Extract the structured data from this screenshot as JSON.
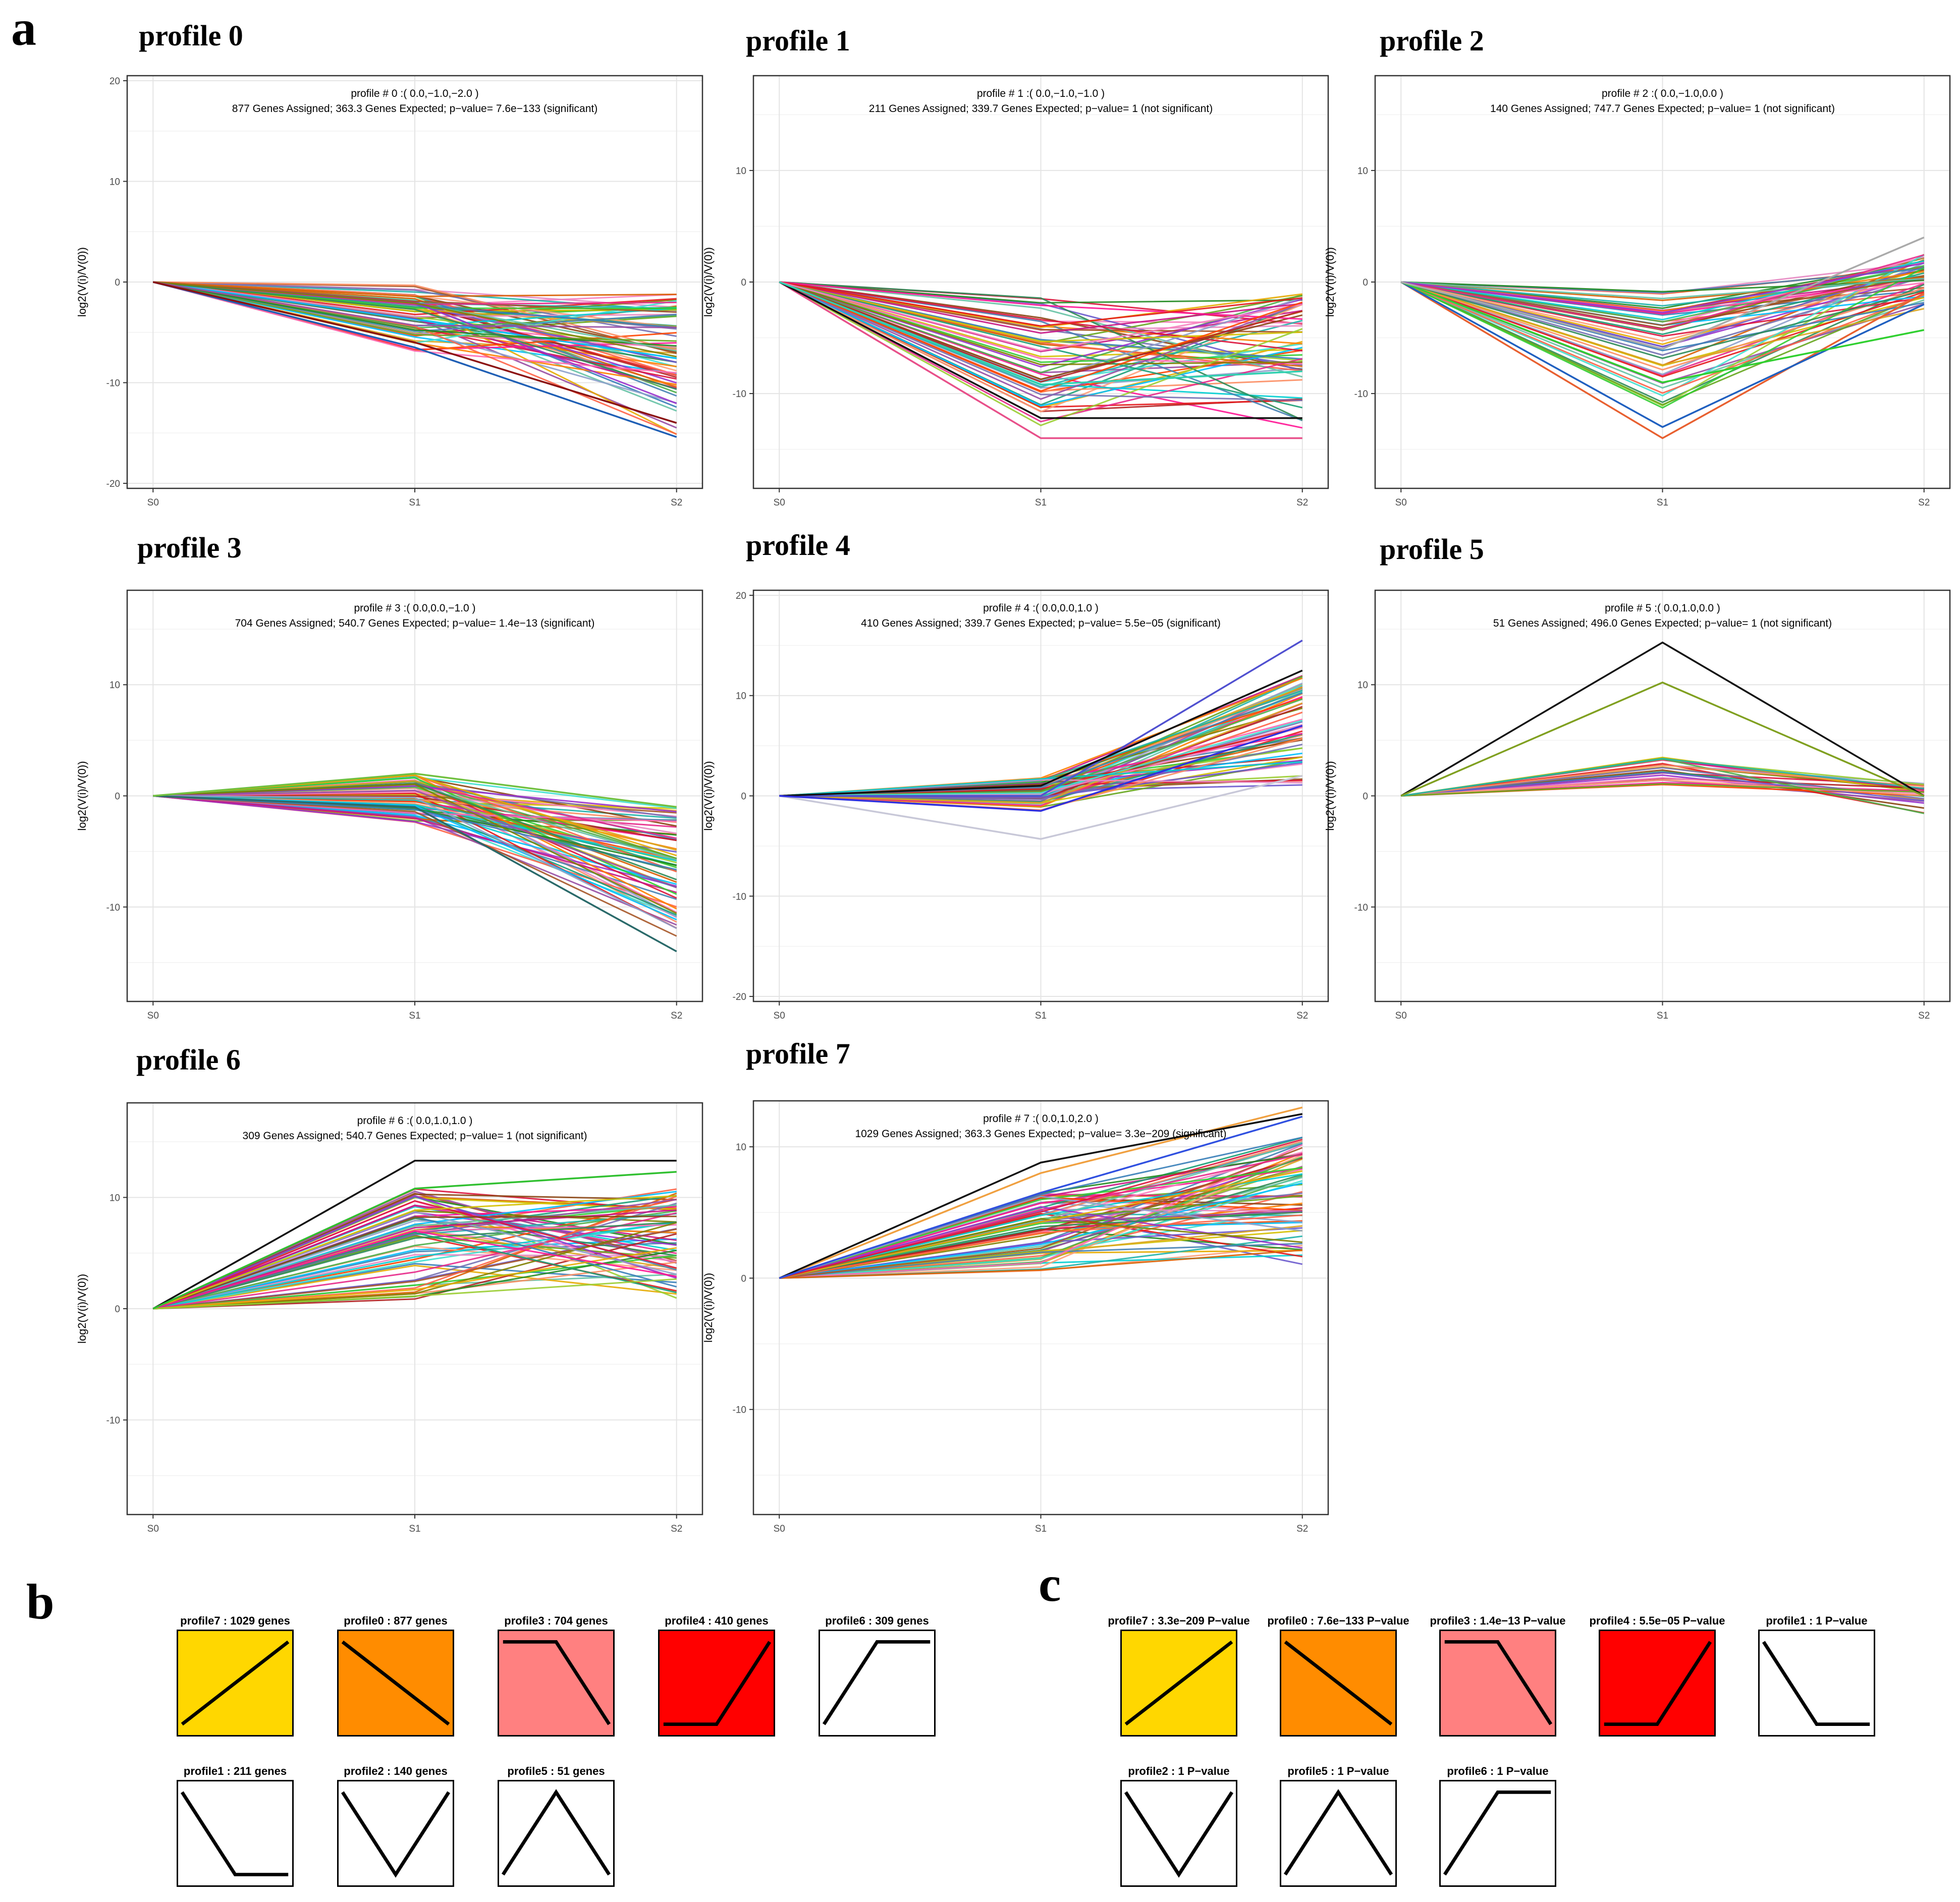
{
  "panels": {
    "a": "a",
    "b": "b",
    "c": "c"
  },
  "chart_data": [
    {
      "type": "line",
      "title": "profile 0",
      "subtitle_line1": "profile # 0 :( 0.0,−1.0,−2.0 )",
      "subtitle_line2": "877 Genes Assigned; 363.3 Genes Expected; p−value= 7.6e−133 (significant)",
      "ylabel": "log2(V(i)/V(0))",
      "categories": [
        "S0",
        "S1",
        "S2"
      ],
      "ylim": [
        -20.5,
        20.5
      ],
      "yticks": [
        20,
        10,
        0,
        -10,
        -20
      ],
      "ytick_labels": [
        "20",
        "10",
        "0",
        "-10",
        "-20"
      ],
      "profile": [
        0,
        -1,
        -2
      ],
      "s1_range": [
        -7,
        -0.3
      ],
      "s2_range": [
        -15.5,
        -1.2
      ],
      "highlight_series": [
        {
          "name": "max-down",
          "values": [
            0,
            -6.5,
            -15.4
          ],
          "color": "#1f5fb5"
        },
        {
          "name": "dark-down",
          "values": [
            0,
            -6,
            -14
          ],
          "color": "#8b1010"
        }
      ],
      "num_series": 70
    },
    {
      "type": "line",
      "title": "profile 1",
      "subtitle_line1": "profile # 1 :( 0.0,−1.0,−1.0 )",
      "subtitle_line2": "211 Genes Assigned; 339.7 Genes Expected; p−value= 1 (not significant)",
      "ylabel": "log2(V(i)/V(0))",
      "categories": [
        "S0",
        "S1",
        "S2"
      ],
      "ylim": [
        -18.5,
        18.5
      ],
      "yticks": [
        10,
        0,
        -10
      ],
      "ytick_labels": [
        "10",
        "0",
        "-10"
      ],
      "profile": [
        0,
        -1,
        -1
      ],
      "s1_range": [
        -13.5,
        -1.2
      ],
      "s2_range": [
        -13.5,
        -1
      ],
      "highlight_series": [
        {
          "name": "deepest",
          "values": [
            0,
            -14,
            -14
          ],
          "color": "#e8508a"
        },
        {
          "name": "black",
          "values": [
            0,
            -12.2,
            -12.2
          ],
          "color": "#111111"
        },
        {
          "name": "cyan",
          "values": [
            0,
            -9.2,
            -8
          ],
          "color": "#2fd0b0"
        }
      ],
      "num_series": 55
    },
    {
      "type": "line",
      "title": "profile 2",
      "subtitle_line1": "profile # 2 :( 0.0,−1.0,0.0 )",
      "subtitle_line2": "140 Genes Assigned; 747.7 Genes Expected; p−value= 1 (not significant)",
      "ylabel": "log2(V(i)/V(0))",
      "categories": [
        "S0",
        "S1",
        "S2"
      ],
      "ylim": [
        -18.5,
        18.5
      ],
      "yticks": [
        10,
        0,
        -10
      ],
      "ytick_labels": [
        "10",
        "0",
        "-10"
      ],
      "profile": [
        0,
        -1,
        0
      ],
      "s1_range": [
        -12,
        -0.8
      ],
      "s2_range": [
        -2.5,
        2.5
      ],
      "highlight_series": [
        {
          "name": "deepest",
          "values": [
            0,
            -14,
            -1
          ],
          "color": "#e86030"
        },
        {
          "name": "blue",
          "values": [
            0,
            -13,
            -2
          ],
          "color": "#2060c0"
        },
        {
          "name": "green",
          "values": [
            0,
            -9,
            -4.3
          ],
          "color": "#30d030"
        },
        {
          "name": "gray-up",
          "values": [
            0,
            -6,
            4
          ],
          "color": "#aaaaaa"
        }
      ],
      "num_series": 50
    },
    {
      "type": "line",
      "title": "profile 3",
      "subtitle_line1": "profile # 3 :( 0.0,0.0,−1.0 )",
      "subtitle_line2": "704 Genes Assigned; 540.7 Genes Expected; p−value= 1.4e−13 (significant)",
      "ylabel": "log2(V(i)/V(0))",
      "categories": [
        "S0",
        "S1",
        "S2"
      ],
      "ylim": [
        -18.5,
        18.5
      ],
      "yticks": [
        10,
        0,
        -10
      ],
      "ytick_labels": [
        "10",
        "0",
        "-10"
      ],
      "profile": [
        0,
        0,
        -1
      ],
      "s1_range": [
        -2.5,
        2
      ],
      "s2_range": [
        -13,
        -0.8
      ],
      "highlight_series": [
        {
          "name": "deepest",
          "values": [
            0,
            -1,
            -14
          ],
          "color": "#2a6a6a"
        },
        {
          "name": "top-green",
          "values": [
            0,
            2,
            -1
          ],
          "color": "#70c040"
        }
      ],
      "num_series": 65
    },
    {
      "type": "line",
      "title": "profile 4",
      "subtitle_line1": "profile # 4 :( 0.0,0.0,1.0 )",
      "subtitle_line2": "410 Genes Assigned; 339.7 Genes Expected; p−value= 5.5e−05 (significant)",
      "ylabel": "log2(V(i)/V(0))",
      "categories": [
        "S0",
        "S1",
        "S2"
      ],
      "ylim": [
        -20.5,
        20.5
      ],
      "yticks": [
        20,
        10,
        0,
        -10,
        -20
      ],
      "ytick_labels": [
        "20",
        "10",
        "0",
        "-10",
        "-20"
      ],
      "profile": [
        0,
        0,
        1
      ],
      "s1_range": [
        -1.5,
        1.8
      ],
      "s2_range": [
        0.8,
        12
      ],
      "highlight_series": [
        {
          "name": "max-up",
          "values": [
            0,
            0,
            15.5
          ],
          "color": "#5050d0"
        },
        {
          "name": "black-up",
          "values": [
            0,
            1,
            12.5
          ],
          "color": "#111111"
        },
        {
          "name": "gray-dip",
          "values": [
            0,
            -4.3,
            2
          ],
          "color": "#c8c8d8"
        },
        {
          "name": "blue-dip",
          "values": [
            0,
            -1.5,
            7
          ],
          "color": "#3030e0"
        }
      ],
      "num_series": 60
    },
    {
      "type": "line",
      "title": "profile 5",
      "subtitle_line1": "profile # 5 :( 0.0,1.0,0.0 )",
      "subtitle_line2": "51 Genes Assigned; 496.0 Genes Expected; p−value= 1 (not significant)",
      "ylabel": "log2(V(i)/V(0))",
      "categories": [
        "S0",
        "S1",
        "S2"
      ],
      "ylim": [
        -18.5,
        18.5
      ],
      "yticks": [
        10,
        0,
        -10
      ],
      "ytick_labels": [
        "10",
        "0",
        "-10"
      ],
      "profile": [
        0,
        1,
        0
      ],
      "s1_range": [
        0.6,
        3.5
      ],
      "s2_range": [
        -2,
        1.2
      ],
      "highlight_series": [
        {
          "name": "black-peak",
          "values": [
            0,
            13.8,
            0
          ],
          "color": "#111111"
        },
        {
          "name": "olive-peak",
          "values": [
            0,
            10.2,
            0
          ],
          "color": "#80a020"
        }
      ],
      "num_series": 25
    },
    {
      "type": "line",
      "title": "profile 6",
      "subtitle_line1": "profile # 6 :( 0.0,1.0,1.0 )",
      "subtitle_line2": "309 Genes Assigned; 540.7 Genes Expected; p−value= 1 (not significant)",
      "ylabel": "log2(V(i)/V(0))",
      "categories": [
        "S0",
        "S1",
        "S2"
      ],
      "ylim": [
        -18.5,
        18.5
      ],
      "yticks": [
        10,
        0,
        -10
      ],
      "ytick_labels": [
        "10",
        "0",
        "-10"
      ],
      "profile": [
        0,
        1,
        1
      ],
      "s1_range": [
        0.8,
        11
      ],
      "s2_range": [
        0.5,
        11
      ],
      "highlight_series": [
        {
          "name": "black-top",
          "values": [
            0,
            13.3,
            13.3
          ],
          "color": "#111111"
        },
        {
          "name": "green-top",
          "values": [
            0,
            10.8,
            12.3
          ],
          "color": "#30c030"
        }
      ],
      "num_series": 65
    },
    {
      "type": "line",
      "title": "profile 7",
      "subtitle_line1": "profile # 7 :( 0.0,1.0,2.0 )",
      "subtitle_line2": "1029 Genes Assigned; 363.3 Genes Expected; p−value= 3.3e−209 (significant)",
      "ylabel": "log2(V(i)/V(0))",
      "categories": [
        "S0",
        "S1",
        "S2"
      ],
      "ylim": [
        -18,
        13.5
      ],
      "yticks": [
        10,
        0,
        -10
      ],
      "ytick_labels": [
        "10",
        "0",
        "-10"
      ],
      "profile": [
        0,
        1,
        2
      ],
      "s1_range": [
        0.4,
        6.5
      ],
      "s2_range": [
        1,
        11
      ],
      "highlight_series": [
        {
          "name": "orange-top",
          "values": [
            0,
            8,
            13
          ],
          "color": "#f0a040"
        },
        {
          "name": "black-top",
          "values": [
            0,
            8.8,
            12.5
          ],
          "color": "#111111"
        },
        {
          "name": "blue-top",
          "values": [
            0,
            6.5,
            12.3
          ],
          "color": "#3050e0"
        }
      ],
      "num_series": 70
    }
  ],
  "summary_b": {
    "rows": [
      [
        {
          "label": "profile7 : 1029 genes",
          "profile": [
            0,
            1,
            2
          ],
          "color": "#FFD700"
        },
        {
          "label": "profile0 : 877 genes",
          "profile": [
            0,
            -1,
            -2
          ],
          "color": "#FF8C00"
        },
        {
          "label": "profile3 : 704 genes",
          "profile": [
            0,
            0,
            -1
          ],
          "color": "#FF8080"
        },
        {
          "label": "profile4 : 410 genes",
          "profile": [
            0,
            0,
            1
          ],
          "color": "#FF0000"
        },
        {
          "label": "profile6 : 309 genes",
          "profile": [
            0,
            1,
            1
          ],
          "color": "#FFFFFF"
        }
      ],
      [
        {
          "label": "profile1 : 211 genes",
          "profile": [
            0,
            -1,
            -1
          ],
          "color": "#FFFFFF"
        },
        {
          "label": "profile2 : 140 genes",
          "profile": [
            0,
            -1,
            0
          ],
          "color": "#FFFFFF"
        },
        {
          "label": "profile5 : 51 genes",
          "profile": [
            0,
            1,
            0
          ],
          "color": "#FFFFFF"
        }
      ]
    ]
  },
  "summary_c": {
    "rows": [
      [
        {
          "label": "profile7 : 3.3e−209 P−value",
          "profile": [
            0,
            1,
            2
          ],
          "color": "#FFD700"
        },
        {
          "label": "profile0 : 7.6e−133 P−value",
          "profile": [
            0,
            -1,
            -2
          ],
          "color": "#FF8C00"
        },
        {
          "label": "profile3 : 1.4e−13 P−value",
          "profile": [
            0,
            0,
            -1
          ],
          "color": "#FF8080"
        },
        {
          "label": "profile4 : 5.5e−05 P−value",
          "profile": [
            0,
            0,
            1
          ],
          "color": "#FF0000"
        },
        {
          "label": "profile1 : 1 P−value",
          "profile": [
            0,
            -1,
            -1
          ],
          "color": "#FFFFFF"
        }
      ],
      [
        {
          "label": "profile2 : 1 P−value",
          "profile": [
            0,
            -1,
            0
          ],
          "color": "#FFFFFF"
        },
        {
          "label": "profile5 : 1 P−value",
          "profile": [
            0,
            1,
            0
          ],
          "color": "#FFFFFF"
        },
        {
          "label": "profile6 : 1 P−value",
          "profile": [
            0,
            1,
            1
          ],
          "color": "#FFFFFF"
        }
      ]
    ]
  },
  "palette": [
    "#e41a1c",
    "#377eb8",
    "#4daf4a",
    "#984ea3",
    "#ff7f00",
    "#d4c000",
    "#a65628",
    "#f781bf",
    "#66c2a5",
    "#fc8d62",
    "#8da0cb",
    "#e78ac3",
    "#1b9e77",
    "#d95f02",
    "#7570b3",
    "#e7298a",
    "#66a61e",
    "#e6ab02",
    "#00ced1",
    "#ff1493",
    "#32cd32",
    "#ff4500",
    "#9932cc",
    "#20b2aa",
    "#dc143c",
    "#4682b4",
    "#9acd32",
    "#ff6347",
    "#6a5acd",
    "#2e8b57",
    "#daa520",
    "#c71585",
    "#00bfff",
    "#b22222",
    "#228b22",
    "#ffa07a",
    "#808000",
    "#40e0d0",
    "#8b4513",
    "#ff69b4"
  ]
}
